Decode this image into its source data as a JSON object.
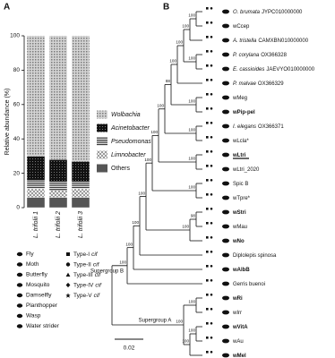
{
  "panel_labels": [
    "A",
    "B"
  ],
  "chart_data": {
    "type": "bar",
    "stacked": true,
    "ylabel": "Relative abundance (%)",
    "categories": [
      "L. trifolii 1",
      "L. trifolii 2",
      "L. trifolii 3"
    ],
    "ylim": [
      0,
      100
    ],
    "yticks": [
      0,
      20,
      40,
      60,
      80,
      100
    ],
    "series": [
      {
        "name": "Others",
        "color": "#555555",
        "pattern": "solid",
        "italic": false,
        "values": [
          6,
          6,
          6
        ]
      },
      {
        "name": "Limnobacter",
        "color": "#9a9a9a",
        "pattern": "diamonds",
        "italic": true,
        "values": [
          5,
          4,
          5
        ]
      },
      {
        "name": "Pseudomonas",
        "color": "#222222",
        "pattern": "hlines",
        "italic": true,
        "values": [
          5,
          5,
          4
        ]
      },
      {
        "name": "Acinetobacter",
        "color": "#1a1a1a",
        "pattern": "checker",
        "italic": true,
        "values": [
          14,
          13,
          12
        ]
      },
      {
        "name": "Wolbachia",
        "color": "#8c8c8c",
        "pattern": "dots",
        "italic": true,
        "values": [
          70,
          72,
          73
        ]
      }
    ]
  },
  "tree": {
    "leaves": [
      {
        "name": "O. brumata",
        "accession": "JYPC010000000",
        "bold": false
      },
      {
        "name": "wCcep",
        "bold": false
      },
      {
        "name": "A. tristella",
        "accession": "CAMXBN010000000",
        "bold": false
      },
      {
        "name": "P. corylana",
        "accession": "OX366328",
        "bold": false
      },
      {
        "name": "E. cassioides",
        "accession": "JAEVYO010000000",
        "bold": false
      },
      {
        "name": "P. malvae",
        "accession": "OX366329",
        "bold": false
      },
      {
        "name": "wMeg",
        "bold": false
      },
      {
        "name": "wPip-pel",
        "bold": true
      },
      {
        "name": "I. elegans",
        "accession": "OX366371",
        "bold": false
      },
      {
        "name": "wLcla*",
        "bold": false
      },
      {
        "name": "wLtri",
        "bold": true
      },
      {
        "name": "wLtri_2020",
        "bold": false
      },
      {
        "name": "Spic B",
        "bold": false
      },
      {
        "name": "wTpre*",
        "bold": false
      },
      {
        "name": "wStri",
        "bold": true
      },
      {
        "name": "wMau",
        "bold": false
      },
      {
        "name": "wNo",
        "bold": true
      },
      {
        "name": "Diplolepis spinosa",
        "bold": false
      },
      {
        "name": "wAlbB",
        "bold": true
      },
      {
        "name": "Gerris buenoi",
        "bold": false
      },
      {
        "name": "wRi",
        "bold": true
      },
      {
        "name": "wIrr",
        "bold": false
      },
      {
        "name": "wVitA",
        "bold": true
      },
      {
        "name": "wAu",
        "bold": false
      },
      {
        "name": "wMel",
        "bold": true
      }
    ],
    "bootstrap": [
      100,
      100,
      100,
      100,
      100,
      100,
      88,
      100,
      100,
      100,
      100,
      100,
      100,
      98,
      100,
      100,
      100,
      100,
      100,
      100,
      100,
      100,
      100
    ],
    "supergroups": [
      "Supergroup B",
      "Supergroup A"
    ],
    "scale_bar": "0.02"
  },
  "legend": {
    "hosts": [
      "Fly",
      "Moth",
      "Butterfly",
      "Mosquito",
      "Damselfly",
      "Planthopper",
      "Wasp",
      "Water strider"
    ],
    "cif_types": [
      {
        "type": "Type-I",
        "gene": "cif"
      },
      {
        "type": "Type-II",
        "gene": "cif"
      },
      {
        "type": "Type-III",
        "gene": "cif"
      },
      {
        "type": "Type-IV",
        "gene": "cif"
      },
      {
        "type": "Type-V",
        "gene": "cif"
      }
    ]
  }
}
